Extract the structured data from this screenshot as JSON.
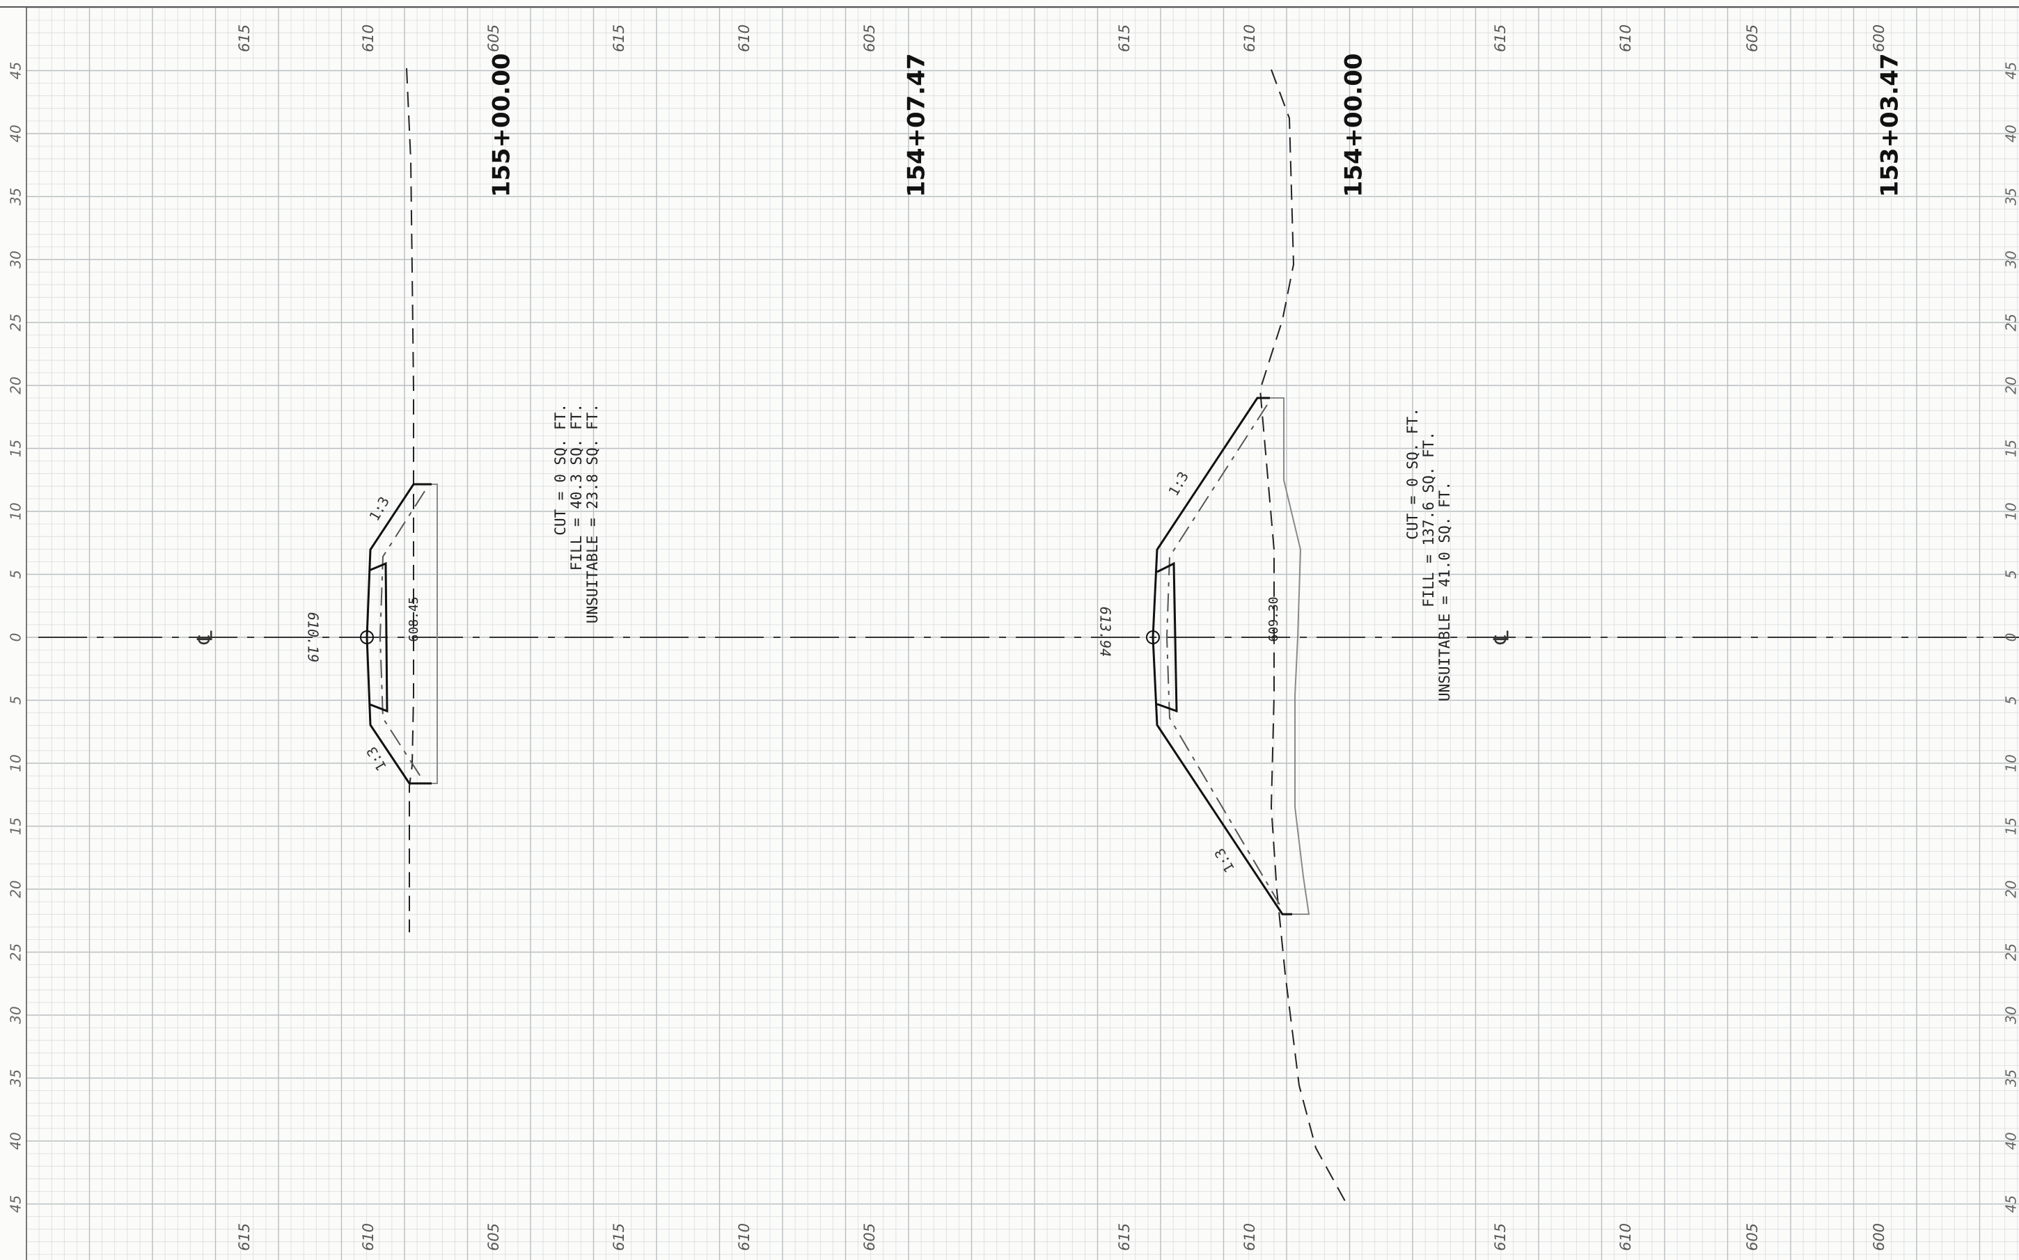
{
  "grid": {
    "minor_color": "#d9dcdd",
    "major_color": "#b9bec0",
    "ink_color": "#1a1a1a",
    "light_ink": "#8a8a8a"
  },
  "offset_scale": {
    "labels": [
      "45",
      "40",
      "35",
      "30",
      "25",
      "20",
      "15",
      "10",
      "5",
      "0",
      "5",
      "10",
      "15",
      "20",
      "25",
      "30",
      "35",
      "40",
      "45"
    ]
  },
  "elevation_bands": [
    {
      "labels": [
        "615",
        "610",
        "605"
      ]
    },
    {
      "labels": [
        "615",
        "610",
        "605"
      ]
    },
    {
      "labels": [
        "615",
        "610"
      ]
    },
    {
      "labels": [
        "615",
        "610",
        "605",
        "600"
      ]
    }
  ],
  "centerline_symbol": "℄",
  "sections": [
    {
      "station": "155+00.00",
      "cut": "CUT = 0 SQ. FT.",
      "fill": "FILL = 40.3 SQ. FT.",
      "unsuitable": "UNSUITABLE = 23.8 SQ. FT.",
      "centerline_elev": "610.19",
      "ground_elev": "608.45",
      "slope_labels": [
        "1:3",
        "1:3"
      ]
    },
    {
      "station": "154+07.47"
    },
    {
      "station": "154+00.00",
      "cut": "CUT = 0 SQ. FT.",
      "fill": "FILL = 137.6 SQ. FT.",
      "unsuitable": "UNSUITABLE = 41.0 SQ. FT.",
      "centerline_elev": "613.94",
      "ground_elev": "609.30",
      "slope_labels": [
        "1:3",
        "1:3"
      ]
    },
    {
      "station": "153+03.47"
    }
  ]
}
